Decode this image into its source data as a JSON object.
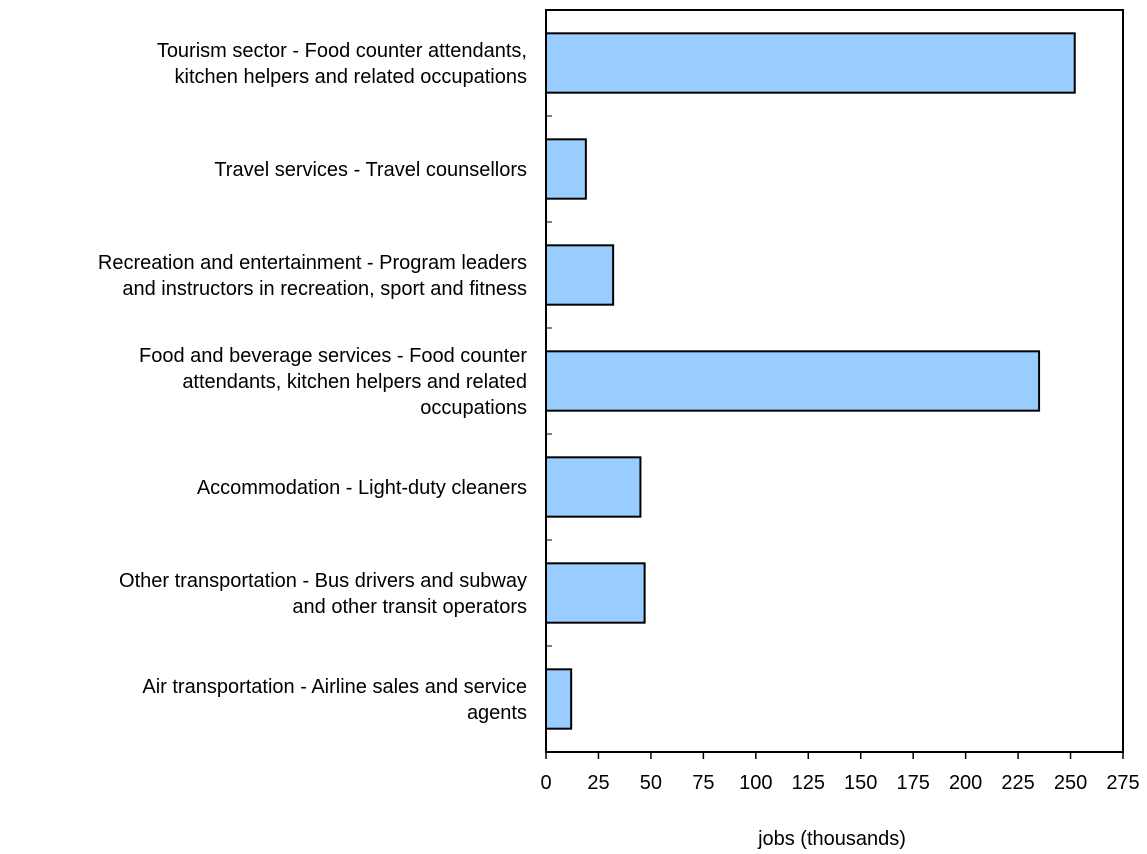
{
  "chart_data": {
    "type": "bar",
    "orientation": "horizontal",
    "categories": [
      [
        "Tourism sector - Food counter attendants,",
        "kitchen helpers and related occupations"
      ],
      [
        "Travel services - Travel counsellors"
      ],
      [
        "Recreation and entertainment - Program leaders",
        "and instructors in recreation, sport and fitness"
      ],
      [
        "Food and beverage services - Food counter",
        "attendants, kitchen helpers and related",
        "occupations"
      ],
      [
        "Accommodation - Light-duty cleaners"
      ],
      [
        "Other transportation - Bus drivers and subway",
        "and other transit operators"
      ],
      [
        "Air transportation - Airline sales and service",
        "agents"
      ]
    ],
    "values": [
      252,
      19,
      32,
      235,
      45,
      47,
      12
    ],
    "title": "",
    "xlabel": "jobs (thousands)",
    "ylabel": "",
    "xlim": [
      0,
      275
    ],
    "xticks": [
      0,
      25,
      50,
      75,
      100,
      125,
      150,
      175,
      200,
      225,
      250,
      275
    ],
    "grid": false,
    "legend": "none",
    "bar_color": "#99ccff",
    "bar_edge_color": "#000000"
  }
}
